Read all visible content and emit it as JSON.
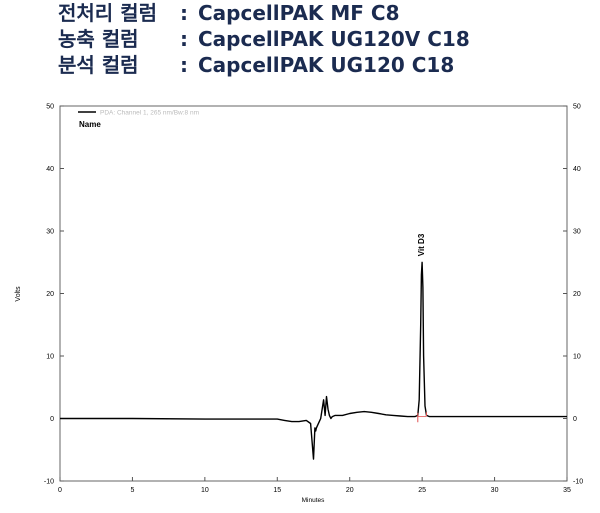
{
  "header": {
    "lines": [
      {
        "name": "전처리 컬럼",
        "sep": ":",
        "value": "CapcellPAK MF C8"
      },
      {
        "name": "농축 컬럼",
        "sep": ":",
        "value": "CapcellPAK UG120V C18"
      },
      {
        "name": "분석 컬럼",
        "sep": ":",
        "value": "CapcellPAK UG120 C18"
      }
    ]
  },
  "chart_data": {
    "type": "line",
    "xlabel": "Minutes",
    "ylabel": "Volts",
    "xlim": [
      0,
      35
    ],
    "ylim": [
      -10,
      50
    ],
    "xticks": [
      0,
      5,
      10,
      15,
      20,
      25,
      30,
      35
    ],
    "yticks": [
      -10,
      0,
      10,
      20,
      30,
      40,
      50
    ],
    "legend": {
      "line_label": "PDA: Channel 1, 265 nm/Bw:8 nm",
      "name_label": "Name",
      "placement": "top-left"
    },
    "grid": false,
    "colors": {
      "trace": "#000000",
      "baseline_marker": "#e05050",
      "axis": "#555555"
    },
    "series": [
      {
        "name": "PDA: Channel 1, 265 nm/Bw:8 nm",
        "x": [
          0,
          5,
          10,
          15,
          15.5,
          16.0,
          16.5,
          17.0,
          17.3,
          17.5,
          17.6,
          17.65,
          17.7,
          17.8,
          17.9,
          18.0,
          18.2,
          18.3,
          18.4,
          18.5,
          18.6,
          18.7,
          18.8,
          19.0,
          19.5,
          20.0,
          20.5,
          21.0,
          21.5,
          22.0,
          22.5,
          23.0,
          23.5,
          24.0,
          24.5,
          24.7,
          24.8,
          24.9,
          24.95,
          25.0,
          25.05,
          25.1,
          25.2,
          25.3,
          25.5,
          26,
          30,
          35
        ],
        "y": [
          0.0,
          0.0,
          -0.1,
          -0.1,
          -0.3,
          -0.5,
          -0.5,
          -0.3,
          -0.8,
          -6.5,
          -1.5,
          -2.0,
          -1.5,
          -1.0,
          -0.5,
          0.0,
          3.0,
          0.5,
          3.5,
          1.5,
          0.5,
          0.0,
          0.3,
          0.5,
          0.5,
          0.8,
          1.0,
          1.1,
          1.0,
          0.8,
          0.6,
          0.5,
          0.4,
          0.3,
          0.3,
          0.5,
          3.0,
          15.0,
          23.0,
          25.0,
          21.0,
          10.0,
          2.0,
          0.5,
          0.3,
          0.3,
          0.3,
          0.3
        ]
      }
    ],
    "annotations": [
      {
        "text": "Vit D3",
        "x": 25.0,
        "y": 25.0
      }
    ]
  }
}
